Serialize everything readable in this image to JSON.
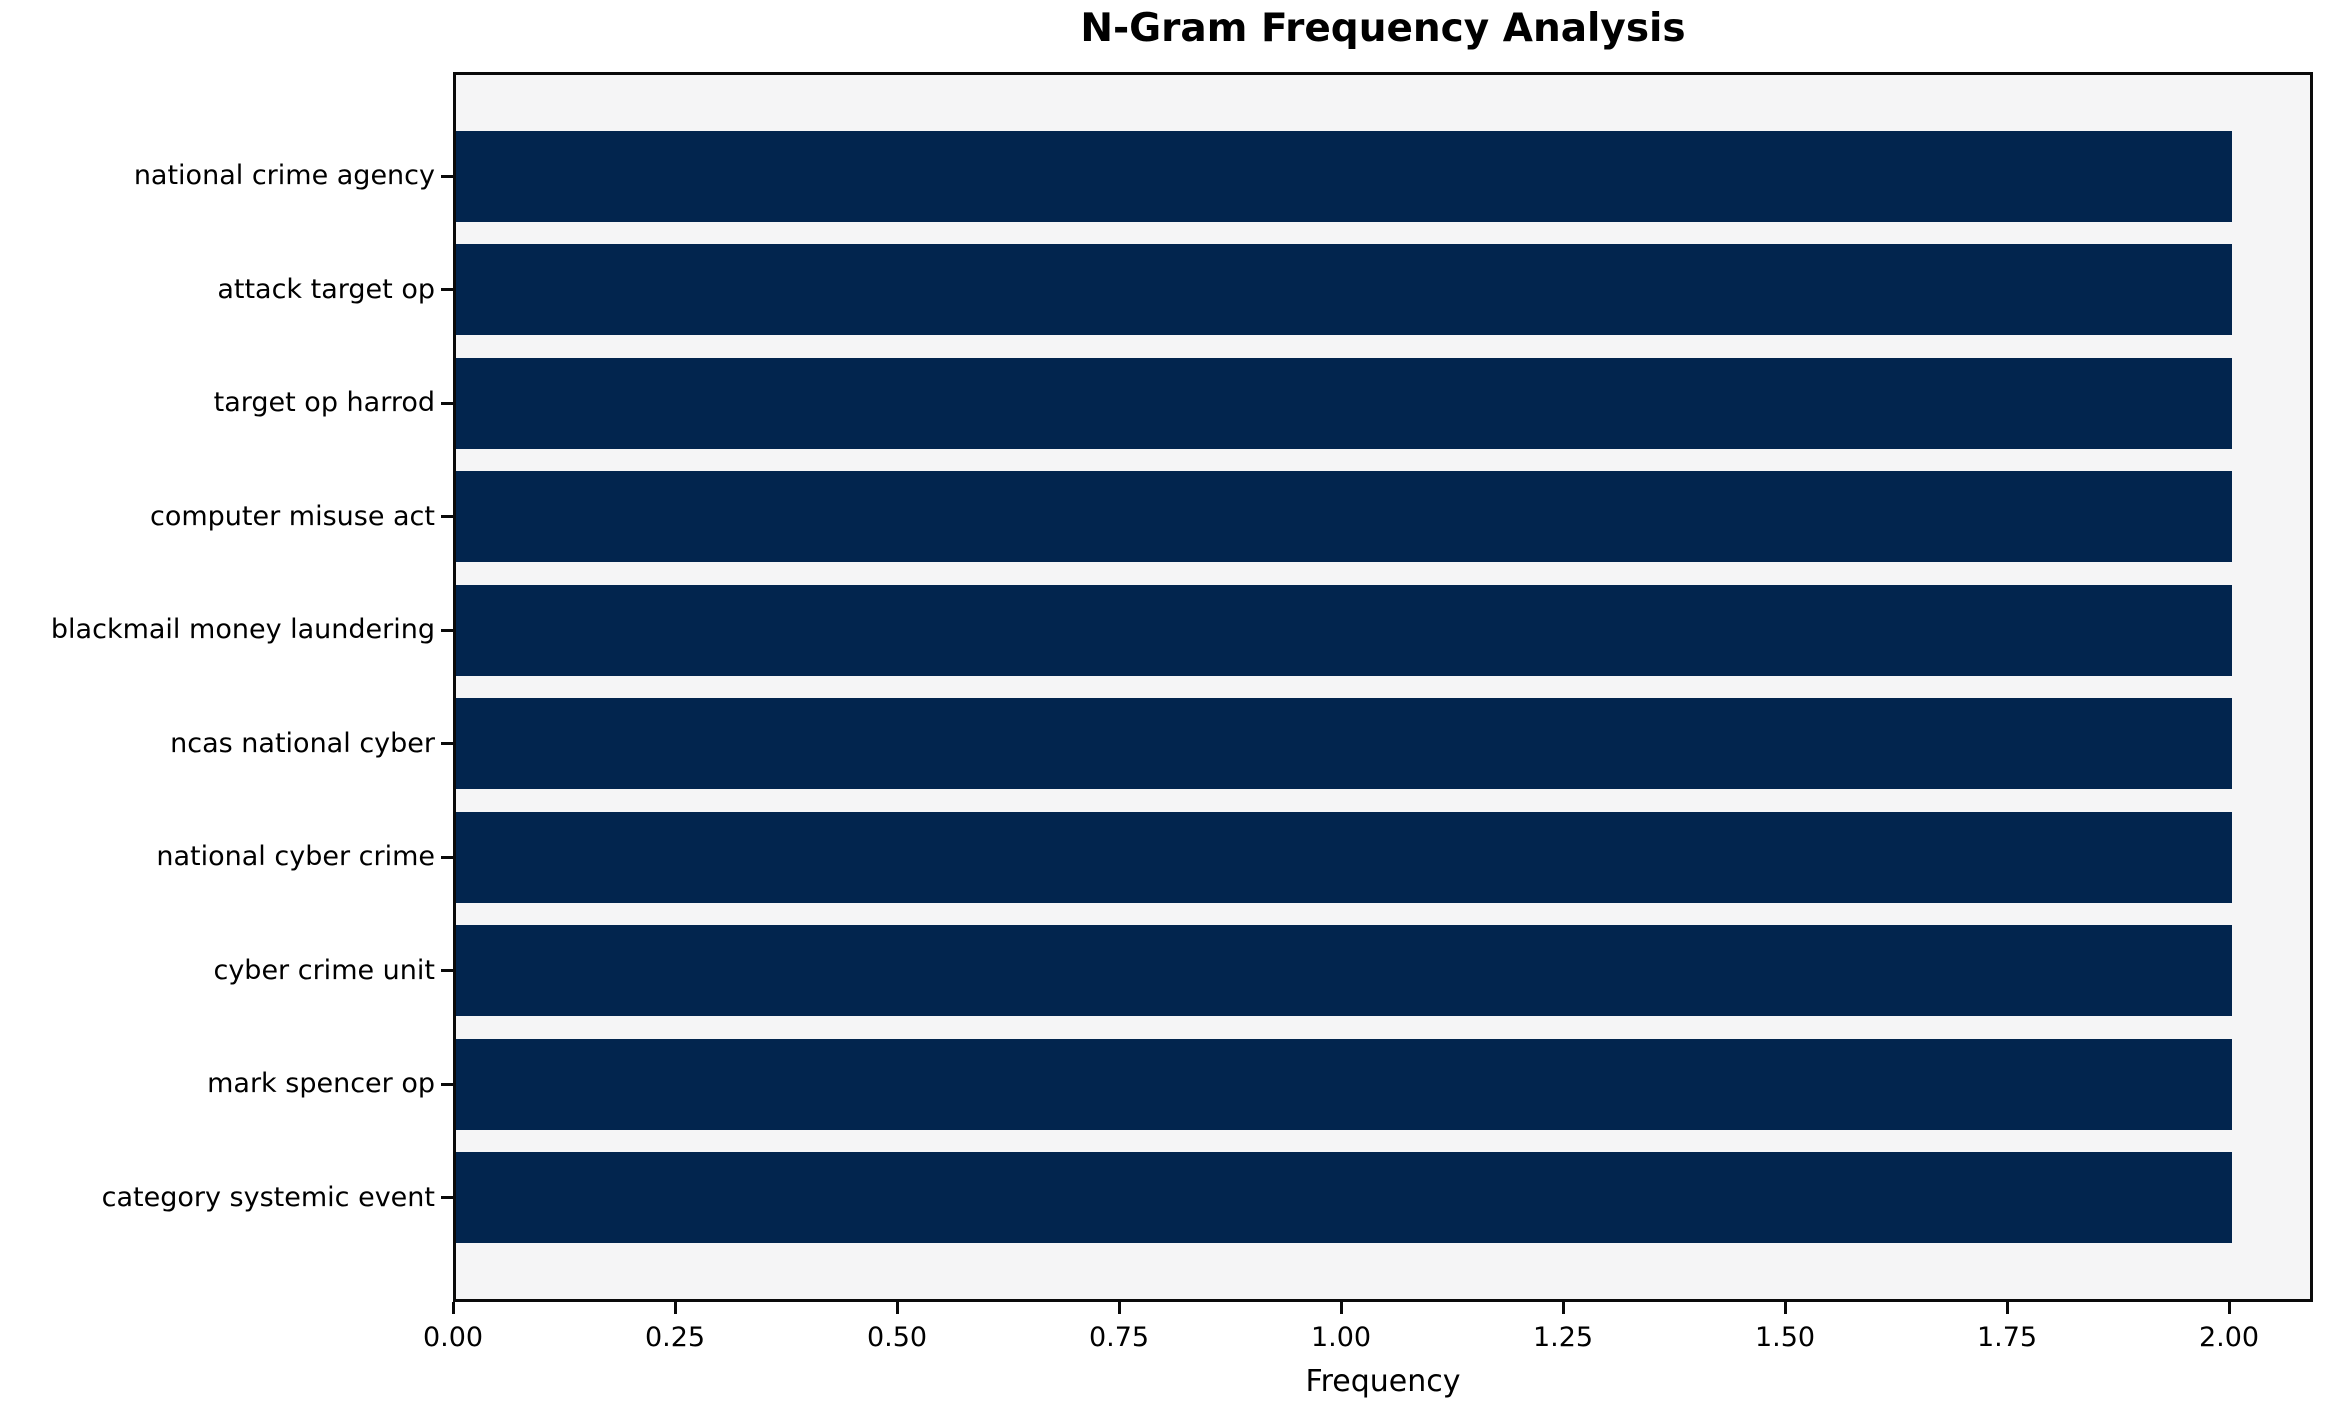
{
  "figure": {
    "background": "#ffffff"
  },
  "chart_data": {
    "type": "bar",
    "orientation": "horizontal",
    "title": "N-Gram Frequency Analysis",
    "xlabel": "Frequency",
    "ylabel": "",
    "categories": [
      "national crime agency",
      "attack target op",
      "target op harrod",
      "computer misuse act",
      "blackmail money laundering",
      "ncas national cyber",
      "national cyber crime",
      "cyber crime unit",
      "mark spencer op",
      "category systemic event"
    ],
    "values": [
      2,
      2,
      2,
      2,
      2,
      2,
      2,
      2,
      2,
      2
    ],
    "xlim": [
      0,
      2.1
    ],
    "xticks": [
      {
        "value": 0.0,
        "label": "0.00"
      },
      {
        "value": 0.25,
        "label": "0.25"
      },
      {
        "value": 0.5,
        "label": "0.50"
      },
      {
        "value": 0.75,
        "label": "0.75"
      },
      {
        "value": 1.0,
        "label": "1.00"
      },
      {
        "value": 1.25,
        "label": "1.25"
      },
      {
        "value": 1.5,
        "label": "1.50"
      },
      {
        "value": 1.75,
        "label": "1.75"
      },
      {
        "value": 2.0,
        "label": "2.00"
      }
    ],
    "grid": false,
    "legend_position": "none",
    "bar_color": "#02254e",
    "plot_background": "#f5f5f6",
    "axis_color": "#0a0a0a",
    "text_color": "#000000"
  }
}
